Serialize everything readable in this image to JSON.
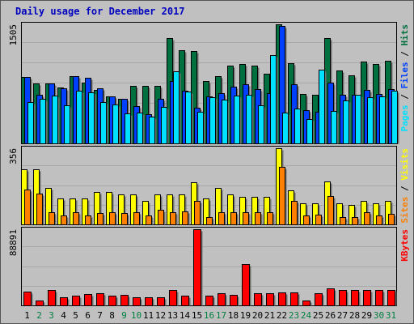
{
  "chart_data": {
    "type": "bar",
    "title": "Daily usage for December 2017",
    "categories": [
      "1",
      "2",
      "3",
      "4",
      "5",
      "6",
      "7",
      "8",
      "9",
      "10",
      "11",
      "12",
      "13",
      "14",
      "15",
      "16",
      "17",
      "18",
      "19",
      "20",
      "21",
      "22",
      "23",
      "24",
      "25",
      "26",
      "27",
      "28",
      "29",
      "30",
      "31"
    ],
    "weekend_days": [
      "2",
      "3",
      "9",
      "10",
      "16",
      "17",
      "23",
      "24",
      "30",
      "31"
    ],
    "colors": {
      "hits": "#007040",
      "files": "#0040ff",
      "pages": "#00e0ff",
      "visits": "#ffff00",
      "sites": "#ff8000",
      "kbytes": "#ff0000",
      "weekday_tick": "#000000",
      "weekend_tick": "#008040"
    },
    "panels": [
      {
        "name": "hits-files-pages",
        "ymax_label": "1505",
        "ylim": [
          0,
          1505
        ],
        "right_label": [
          "Pages",
          " / ",
          "Files",
          " / ",
          "Hits"
        ],
        "right_label_colors": [
          "#00e0ff",
          "#000000",
          "#0040ff",
          "#000000",
          "#007040"
        ],
        "series": [
          {
            "name": "Hits",
            "color": "#007040",
            "values": [
              840,
              760,
              760,
              710,
              850,
              770,
              680,
              590,
              560,
              730,
              730,
              730,
              1330,
              1180,
              1170,
              790,
              850,
              980,
              1000,
              980,
              880,
              1505,
              1010,
              620,
              610,
              1330,
              920,
              860,
              1030,
              1000,
              1040
            ]
          },
          {
            "name": "Files",
            "color": "#0040ff",
            "values": [
              840,
              610,
              760,
              700,
              850,
              830,
              700,
              590,
              560,
              470,
              370,
              560,
              790,
              670,
              450,
              590,
              630,
              720,
              750,
              690,
              630,
              1480,
              750,
              420,
              400,
              770,
              610,
              610,
              680,
              620,
              690
            ]
          },
          {
            "name": "Pages",
            "color": "#00e0ff",
            "values": [
              520,
              560,
              600,
              480,
              670,
              650,
              520,
              490,
              380,
              390,
              340,
              460,
              910,
              660,
              400,
              580,
              550,
              600,
              610,
              480,
              1120,
              390,
              440,
              310,
              930,
              410,
              540,
              610,
              580,
              590,
              670
            ]
          }
        ]
      },
      {
        "name": "visits-sites",
        "ymax_label": "356",
        "ylim": [
          0,
          356
        ],
        "right_label": [
          "Sites",
          " / ",
          "Visits"
        ],
        "right_label_colors": [
          "#ff8000",
          "#000000",
          "#ffff00"
        ],
        "series": [
          {
            "name": "Visits",
            "color": "#ffff00",
            "values": [
              256,
              256,
              172,
              123,
              123,
              123,
              150,
              150,
              142,
              142,
              110,
              140,
              140,
              140,
              196,
              123,
              169,
              140,
              130,
              130,
              130,
              356,
              160,
              99,
              99,
              201,
              99,
              90,
              110,
              100,
              110
            ]
          },
          {
            "name": "Sites",
            "color": "#ff8000",
            "values": [
              164,
              144,
              55,
              40,
              55,
              40,
              53,
              55,
              53,
              55,
              40,
              67,
              57,
              60,
              110,
              35,
              55,
              58,
              57,
              57,
              57,
              269,
              110,
              40,
              44,
              134,
              33,
              33,
              57,
              42,
              50
            ]
          }
        ]
      },
      {
        "name": "kbytes",
        "ymax_label": "88891",
        "ylim": [
          0,
          88891
        ],
        "right_label": [
          "KBytes"
        ],
        "right_label_colors": [
          "#ff0000"
        ],
        "series": [
          {
            "name": "KBytes",
            "color": "#ff0000",
            "values": [
              16000,
              5400,
              17800,
              9300,
              11600,
              13200,
              14500,
              11600,
              11900,
              9300,
              9300,
              9300,
              17800,
              11600,
              88891,
              11600,
              14000,
              12700,
              48000,
              14000,
              14000,
              15200,
              15200,
              5800,
              14000,
              20300,
              17800,
              17800,
              17800,
              17800,
              17800
            ]
          }
        ]
      }
    ]
  }
}
